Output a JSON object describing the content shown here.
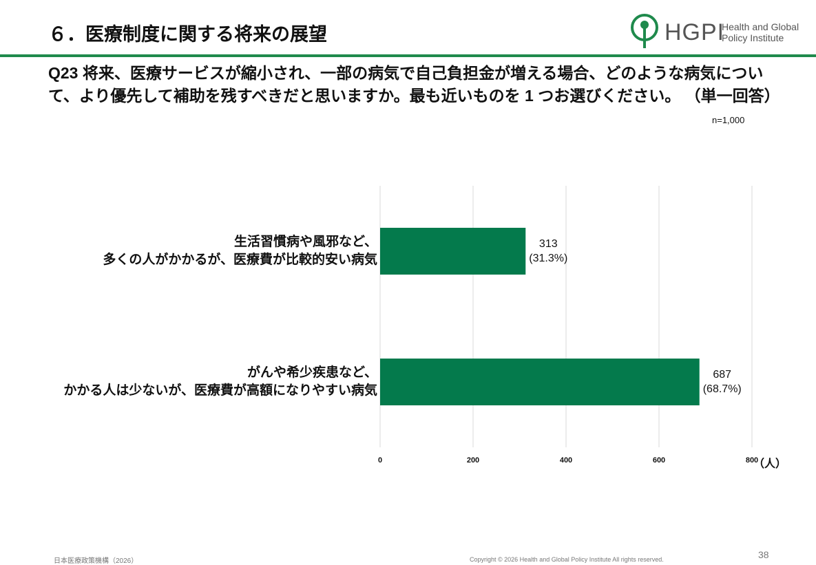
{
  "slide": {
    "title": "６．医療制度に関する将来の展望",
    "logo": {
      "short": "HGPI",
      "line1": "Health and Global",
      "line2": "Policy Institute"
    },
    "question": "Q23  将来、医療サービスが縮小され、一部の病気で自己負担金が増える場合、どのような病気について、より優先して補助を残すべきだと思いますか。最も近いものを 1 つお選びください。  （単一回答）",
    "sample": "n=1,000",
    "footer_left": "日本医療政策機構（2026）",
    "copyright": "Copyright © 2026 Health and Global Policy Institute  All rights reserved.",
    "page": "38"
  },
  "chart_data": {
    "type": "barh",
    "categories": [
      "生活習慣病や風邪など、\n多くの人がかかるが、医療費が比較的安い病気",
      "がんや希少疾患など、\nかかる人は少ないが、医療費が高額になりやすい病気"
    ],
    "values": [
      313,
      687
    ],
    "value_labels": [
      "313\n(31.3%)",
      "687\n(68.7%)"
    ],
    "color": "#047a4c",
    "xlim": [
      0,
      800
    ],
    "xticks": [
      0,
      200,
      400,
      600,
      800
    ],
    "x_unit": "（人）",
    "grid": true
  }
}
